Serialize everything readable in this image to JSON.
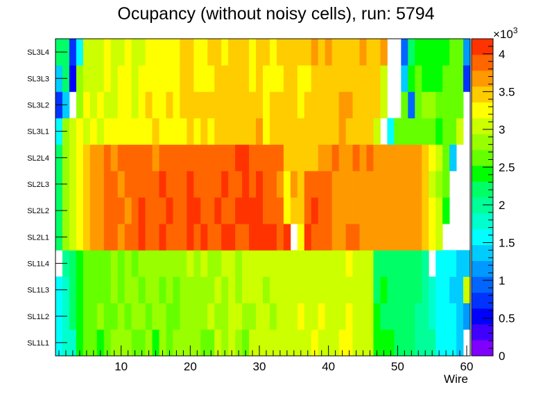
{
  "chart_data": {
    "type": "heatmap",
    "title": "Ocupancy (without noisy cells), run: 5794",
    "xlabel": "Wire",
    "ylabel": "",
    "xlim": [
      0.5,
      60.5
    ],
    "xticks": [
      10,
      20,
      30,
      40,
      50,
      60
    ],
    "zlim": [
      0,
      4200
    ],
    "z_exponent_label": "×10",
    "z_exponent_power": "3",
    "zticks": [
      {
        "value": 0,
        "label": "0"
      },
      {
        "value": 500,
        "label": "0.5"
      },
      {
        "value": 1000,
        "label": "1"
      },
      {
        "value": 1500,
        "label": "1.5"
      },
      {
        "value": 2000,
        "label": "2"
      },
      {
        "value": 2500,
        "label": "2.5"
      },
      {
        "value": 3000,
        "label": "3"
      },
      {
        "value": 3500,
        "label": "3.5"
      },
      {
        "value": 4000,
        "label": "4"
      }
    ],
    "layers": [
      "SL1L1",
      "SL1L2",
      "SL1L3",
      "SL1L4",
      "SL2L1",
      "SL2L2",
      "SL2L3",
      "SL2L4",
      "SL3L1",
      "SL3L2",
      "SL3L3",
      "SL3L4"
    ],
    "values": [
      [
        1500,
        1800,
        1800,
        2400,
        2600,
        2600,
        2500,
        2700,
        2800,
        2800,
        2800,
        2700,
        2700,
        2800,
        2500,
        2800,
        2700,
        2800,
        2800,
        2900,
        2800,
        2700,
        2600,
        3000,
        2800,
        3000,
        2900,
        2700,
        3000,
        3000,
        3000,
        3000,
        3000,
        3100,
        3000,
        3000,
        3100,
        3200,
        3000,
        3000,
        3100,
        3200,
        3200,
        3100,
        3000,
        3000,
        2500,
        2400,
        2500,
        2300,
        2200,
        2200,
        2000,
        2000,
        1900,
        1600,
        1600,
        1500,
        1400,
        0
      ],
      [
        1600,
        1800,
        2200,
        2500,
        2600,
        2600,
        2800,
        2700,
        2700,
        2800,
        2700,
        2800,
        2900,
        2700,
        2800,
        2800,
        2700,
        2700,
        2800,
        2900,
        2800,
        2900,
        3000,
        2800,
        2900,
        3000,
        3000,
        2800,
        2900,
        3000,
        3100,
        2900,
        3000,
        3000,
        3100,
        3200,
        3100,
        3100,
        3200,
        3000,
        3000,
        3100,
        3200,
        3000,
        3100,
        3000,
        2400,
        2300,
        2300,
        2300,
        2300,
        2100,
        2000,
        2000,
        1800,
        1600,
        1500,
        1500,
        1300,
        1200
      ],
      [
        1600,
        1800,
        2100,
        2400,
        2700,
        2600,
        2700,
        2700,
        2800,
        2700,
        2800,
        2800,
        2700,
        2800,
        2800,
        2700,
        2900,
        2700,
        2800,
        2900,
        2800,
        2900,
        2900,
        3000,
        2800,
        3000,
        2900,
        3000,
        3000,
        3000,
        2900,
        3000,
        3100,
        3000,
        3000,
        3100,
        3000,
        3100,
        3000,
        3000,
        3100,
        3100,
        3000,
        3100,
        3000,
        3100,
        2300,
        2400,
        2300,
        2200,
        2200,
        2100,
        2200,
        2000,
        1800,
        1600,
        1600,
        1400,
        1300,
        3100
      ],
      [
        0,
        1900,
        2100,
        2500,
        2600,
        2600,
        2700,
        2700,
        2800,
        2600,
        2800,
        2700,
        2800,
        2900,
        2800,
        2900,
        2800,
        2900,
        2800,
        3000,
        2800,
        3000,
        2900,
        2900,
        3000,
        3000,
        2900,
        3000,
        3000,
        3100,
        3000,
        3100,
        3000,
        3000,
        3000,
        3100,
        3000,
        3100,
        3100,
        3000,
        3000,
        3100,
        3200,
        3100,
        3100,
        3000,
        2300,
        2300,
        2300,
        2200,
        2300,
        2200,
        2100,
        2000,
        0,
        1600,
        1500,
        1500,
        1300,
        1300
      ],
      [
        2200,
        2800,
        3000,
        3300,
        3500,
        3700,
        3700,
        3900,
        3800,
        3600,
        3900,
        3800,
        4000,
        3800,
        3900,
        4000,
        3900,
        3800,
        3900,
        4100,
        3900,
        4000,
        3900,
        3900,
        4000,
        4000,
        3900,
        3900,
        4000,
        4100,
        4000,
        4000,
        3900,
        4000,
        0,
        3300,
        4000,
        3900,
        3900,
        3900,
        3700,
        3700,
        3800,
        3800,
        3700,
        3700,
        3600,
        3600,
        3600,
        3700,
        3600,
        3700,
        3600,
        3500,
        3200,
        3000,
        0,
        0,
        0,
        0
      ],
      [
        2100,
        2800,
        3000,
        3300,
        3500,
        3600,
        3700,
        3800,
        3800,
        3800,
        3700,
        3900,
        4000,
        3800,
        3900,
        3900,
        4000,
        3900,
        3900,
        4000,
        4000,
        3900,
        3900,
        4000,
        3900,
        3900,
        4100,
        4000,
        4000,
        4000,
        3900,
        3900,
        3900,
        3300,
        3400,
        3400,
        3800,
        4000,
        3900,
        3900,
        3700,
        3600,
        3700,
        3700,
        3600,
        3700,
        3600,
        3700,
        3600,
        3700,
        3600,
        3600,
        3700,
        3500,
        3200,
        3100,
        2500,
        0,
        0,
        0
      ],
      [
        2200,
        2900,
        3000,
        3300,
        3500,
        3700,
        3700,
        3800,
        3800,
        3700,
        3800,
        3900,
        3800,
        3800,
        3900,
        4000,
        3900,
        3900,
        3900,
        4000,
        3900,
        3800,
        3900,
        3900,
        4000,
        3900,
        3900,
        4000,
        3800,
        4000,
        3800,
        3800,
        3700,
        3200,
        3600,
        3400,
        3900,
        3900,
        3900,
        3900,
        3700,
        3700,
        3700,
        3600,
        3600,
        3700,
        3700,
        3600,
        3600,
        3600,
        3700,
        3600,
        3600,
        3500,
        3100,
        2800,
        2600,
        0,
        0,
        0
      ],
      [
        2100,
        2900,
        3000,
        3300,
        3500,
        3600,
        3700,
        3800,
        3700,
        3800,
        3800,
        3900,
        3800,
        3800,
        3700,
        3900,
        3800,
        3900,
        3900,
        3900,
        3800,
        3900,
        3900,
        3900,
        3800,
        3900,
        4000,
        4000,
        3800,
        3900,
        3800,
        3900,
        3800,
        3500,
        3400,
        3400,
        3500,
        3500,
        3600,
        3700,
        3800,
        3700,
        3700,
        3800,
        3700,
        3800,
        3700,
        3700,
        3600,
        3600,
        3600,
        3600,
        3700,
        3500,
        3300,
        3000,
        2600,
        1400,
        0,
        0
      ],
      [
        1500,
        2900,
        3000,
        3300,
        3000,
        3300,
        3100,
        3300,
        3200,
        3200,
        3300,
        3300,
        3200,
        3300,
        3400,
        3200,
        3300,
        3300,
        3300,
        3400,
        3300,
        3400,
        3300,
        3400,
        3400,
        3400,
        3400,
        3400,
        3400,
        3600,
        3300,
        3400,
        3400,
        3400,
        3400,
        3400,
        3500,
        3500,
        3400,
        3400,
        3400,
        3600,
        3500,
        3400,
        3500,
        3500,
        3000,
        0,
        1500,
        2700,
        2700,
        2700,
        2700,
        2600,
        2600,
        2500,
        2600,
        2700,
        3000,
        0
      ],
      [
        800,
        1400,
        0,
        2900,
        3200,
        3000,
        3300,
        3100,
        3100,
        3300,
        3300,
        3000,
        3300,
        3400,
        3300,
        3300,
        3400,
        3300,
        3400,
        3500,
        3400,
        3400,
        3500,
        3400,
        3500,
        3400,
        3500,
        3400,
        3500,
        3500,
        3300,
        3500,
        3400,
        3400,
        3500,
        3300,
        3500,
        3400,
        3500,
        3500,
        3400,
        3600,
        3600,
        3500,
        3500,
        3500,
        3400,
        3000,
        0,
        0,
        2700,
        1000,
        2700,
        2900,
        2800,
        2700,
        2700,
        2600,
        2700,
        0
      ],
      [
        1300,
        2300,
        600,
        2800,
        3100,
        3000,
        3100,
        3300,
        3100,
        3200,
        3200,
        3100,
        3200,
        3300,
        3200,
        3300,
        3300,
        3300,
        3400,
        3400,
        3300,
        3300,
        3300,
        3400,
        3400,
        3400,
        3400,
        3400,
        3300,
        3500,
        3300,
        3300,
        3300,
        3400,
        3400,
        3300,
        3300,
        3500,
        3500,
        3400,
        3400,
        3500,
        3400,
        3500,
        3400,
        3500,
        3500,
        3000,
        0,
        0,
        1300,
        2400,
        2600,
        2500,
        2400,
        2500,
        2600,
        2700,
        2700,
        700
      ],
      [
        2100,
        2300,
        700,
        1600,
        3000,
        3100,
        3000,
        3200,
        3000,
        3100,
        3200,
        3100,
        3100,
        3200,
        3200,
        3300,
        3200,
        3200,
        3400,
        3400,
        3300,
        3300,
        3400,
        3400,
        3300,
        3500,
        3400,
        3500,
        3300,
        3500,
        3400,
        3300,
        3400,
        3400,
        3500,
        3400,
        3500,
        3700,
        3500,
        3600,
        3500,
        3400,
        3500,
        3500,
        3600,
        3400,
        3400,
        3600,
        0,
        0,
        1000,
        2200,
        2400,
        2400,
        2500,
        2400,
        2500,
        2600,
        2600,
        1200
      ]
    ]
  }
}
